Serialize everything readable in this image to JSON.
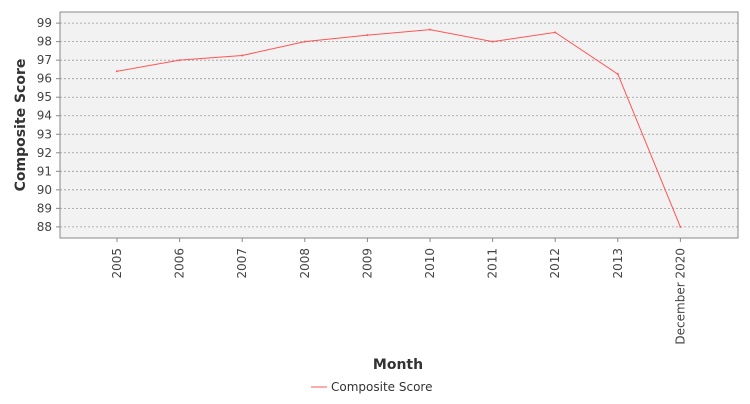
{
  "chart_data": {
    "type": "line",
    "xlabel": "Month",
    "ylabel": "Composite Score",
    "categories": [
      "2005",
      "2006",
      "2007",
      "2008",
      "2009",
      "2010",
      "2011",
      "2012",
      "2013",
      "December 2020"
    ],
    "series": [
      {
        "name": "Composite Score",
        "color": "#ff5555",
        "values": [
          96.4,
          97.0,
          97.25,
          98.0,
          98.35,
          98.65,
          98.0,
          98.5,
          96.25,
          88.0
        ]
      }
    ],
    "yticks": [
      88,
      89,
      90,
      91,
      92,
      93,
      94,
      95,
      96,
      97,
      98,
      99
    ],
    "ylim": [
      87.4,
      99.6
    ],
    "grid": true,
    "legend_position": "bottom"
  }
}
